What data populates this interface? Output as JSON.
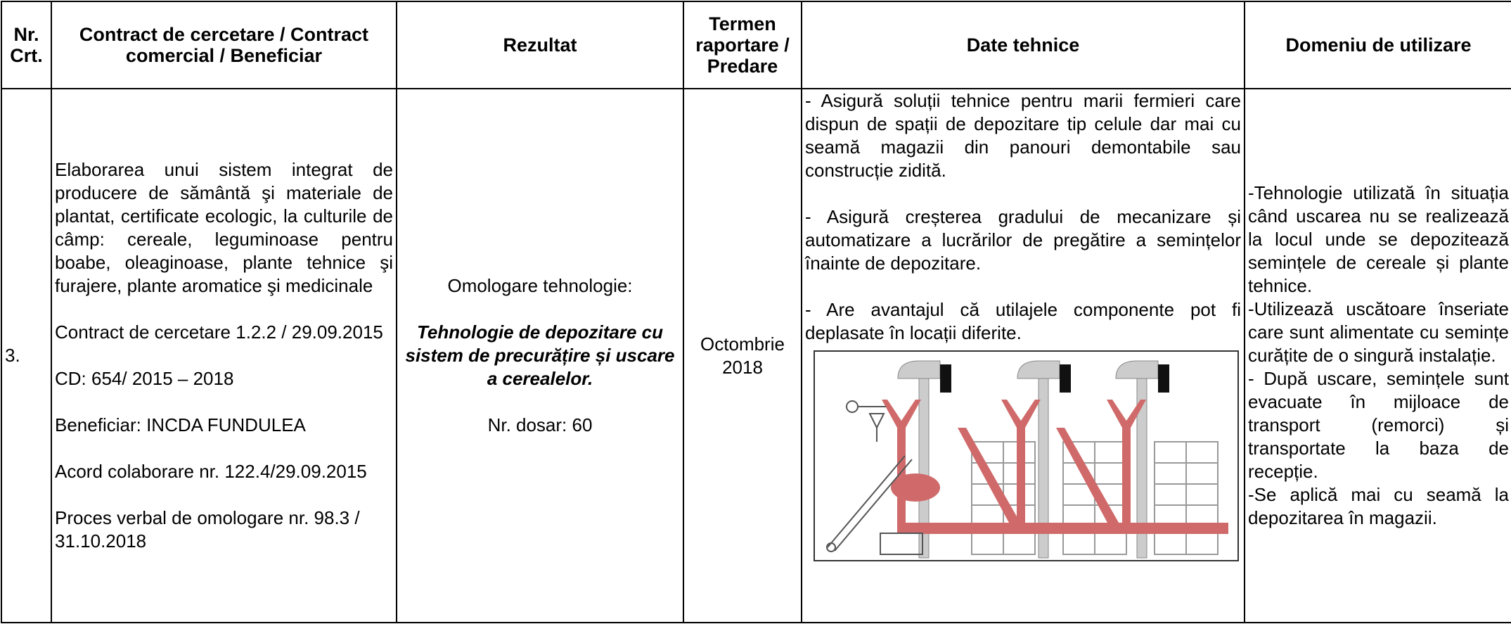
{
  "table": {
    "header": [
      "Nr. Crt.",
      "Contract de cercetare / Contract comercial / Beneficiar",
      "Rezultat",
      "Termen raportare / Predare",
      "Date tehnice",
      "Domeniu de utilizare"
    ],
    "rows": [
      {
        "nr": "3.",
        "contract": [
          "Elaborarea unui sistem integrat de producere de sământă şi materiale de plantat, certificate ecologic, la culturile de câmp: cereale, leguminoase pentru boabe, oleaginoase, plante tehnice şi furajere, plante aromatice şi medicinale",
          "Contract de cercetare 1.2.2 / 29.09.2015",
          "CD: 654/ 2015 – 2018",
          "Beneficiar: INCDA FUNDULEA",
          "Acord colaborare nr. 122.4/29.09.2015",
          "Proces verbal de omologare nr. 98.3 / 31.10.2018"
        ],
        "rezultat": {
          "label": "Omologare tehnologie:",
          "title": "Tehnologie de depozitare cu sistem de precurățire și uscare a cerealelor.",
          "dosar": "Nr. dosar: 60"
        },
        "termen": "Octombrie 2018",
        "date_tehnice": [
          "- Asigură soluții tehnice pentru marii fermieri care dispun de spații de depozitare tip celule dar mai cu seamă magazii din panouri demontabile sau construcție zidită.",
          "- Asigură creșterea gradului de mecanizare și automatizare a lucrărilor de pregătire a semințelor înainte de depozitare.",
          "- Are avantajul că utilajele componente pot fi deplasate în locații diferite."
        ],
        "domeniu": [
          "-Tehnologie utilizată în situația când uscarea nu se realizează la locul unde se depozitează semințele de cereale și plante tehnice.",
          "-Utilizează uscătoare înseriate care sunt alimentate cu semințe curățite de o singură instalație.",
          "- După uscare, semințele sunt evacuate în mijloace de transport (remorci) și transportate la baza de recepție.",
          "-Se aplică mai cu seamă la depozitarea în magazii."
        ]
      }
    ]
  }
}
